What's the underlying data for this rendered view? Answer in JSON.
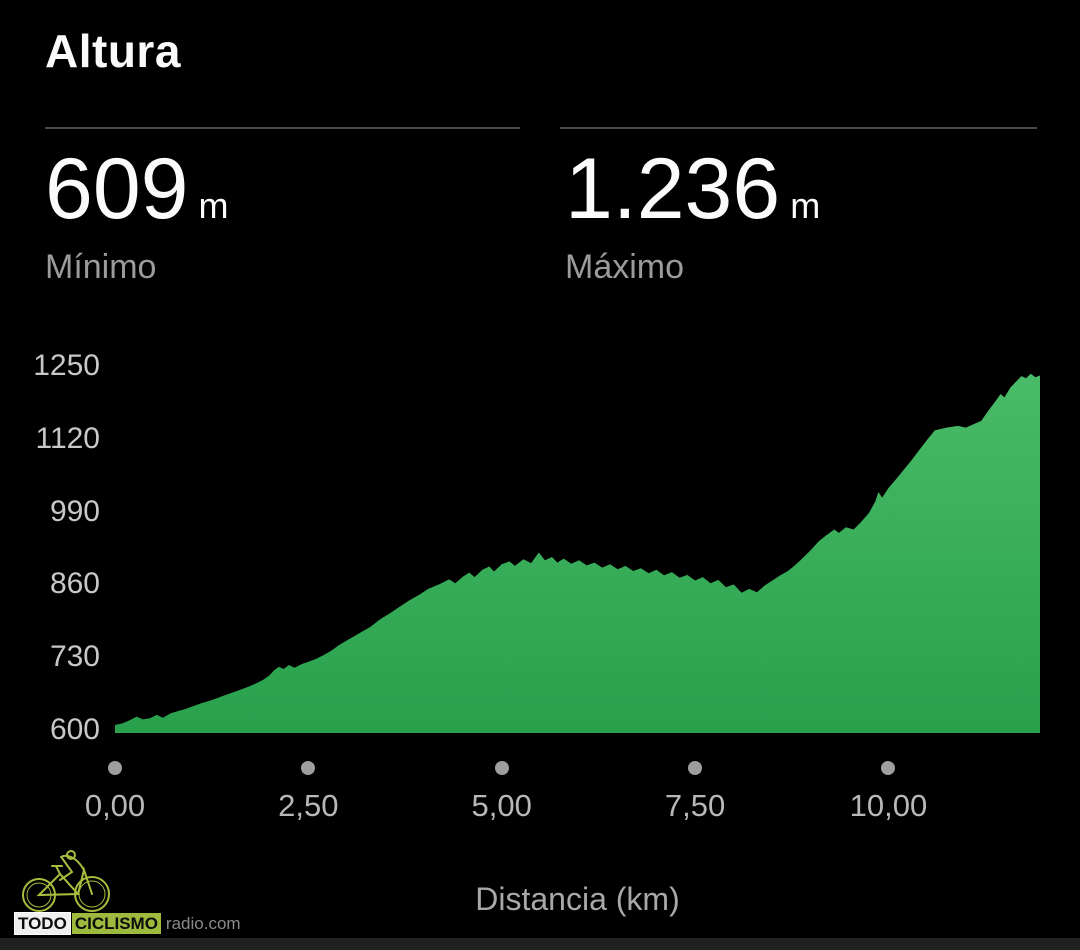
{
  "title": "Altura",
  "stats": {
    "min": {
      "value": "609",
      "unit": "m",
      "label": "Mínimo"
    },
    "max": {
      "value": "1.236",
      "unit": "m",
      "label": "Máximo"
    }
  },
  "chart_data": {
    "type": "area",
    "title": "Altura",
    "xlabel": "Distancia (km)",
    "ylabel": "",
    "xlim": [
      0,
      11.96
    ],
    "ylim": [
      600,
      1250
    ],
    "grid": false,
    "legend": "none",
    "x_ticks": [
      {
        "label": "0,00",
        "value": 0
      },
      {
        "label": "2,50",
        "value": 2.5
      },
      {
        "label": "5,00",
        "value": 5
      },
      {
        "label": "7,50",
        "value": 7.5
      },
      {
        "label": "10,00",
        "value": 10
      }
    ],
    "y_ticks": [
      {
        "label": "600",
        "value": 600
      },
      {
        "label": "730",
        "value": 730
      },
      {
        "label": "860",
        "value": 860
      },
      {
        "label": "990",
        "value": 990
      },
      {
        "label": "1120",
        "value": 1120
      },
      {
        "label": "1250",
        "value": 1250
      }
    ],
    "min_elevation_m": 609,
    "max_elevation_m": 1236,
    "points": [
      [
        0,
        609
      ],
      [
        0.1,
        612
      ],
      [
        0.2,
        618
      ],
      [
        0.28,
        624
      ],
      [
        0.36,
        619
      ],
      [
        0.45,
        621
      ],
      [
        0.54,
        627
      ],
      [
        0.62,
        622
      ],
      [
        0.72,
        630
      ],
      [
        0.82,
        634
      ],
      [
        0.92,
        638
      ],
      [
        1.02,
        643
      ],
      [
        1.12,
        648
      ],
      [
        1.22,
        652
      ],
      [
        1.32,
        657
      ],
      [
        1.42,
        662
      ],
      [
        1.52,
        667
      ],
      [
        1.62,
        672
      ],
      [
        1.72,
        677
      ],
      [
        1.82,
        683
      ],
      [
        1.92,
        690
      ],
      [
        2.0,
        698
      ],
      [
        2.06,
        707
      ],
      [
        2.12,
        713
      ],
      [
        2.18,
        709
      ],
      [
        2.25,
        716
      ],
      [
        2.32,
        711
      ],
      [
        2.42,
        718
      ],
      [
        2.5,
        722
      ],
      [
        2.6,
        727
      ],
      [
        2.7,
        734
      ],
      [
        2.8,
        742
      ],
      [
        2.9,
        752
      ],
      [
        3.0,
        760
      ],
      [
        3.1,
        768
      ],
      [
        3.2,
        776
      ],
      [
        3.3,
        784
      ],
      [
        3.42,
        797
      ],
      [
        3.55,
        808
      ],
      [
        3.68,
        820
      ],
      [
        3.8,
        831
      ],
      [
        3.94,
        842
      ],
      [
        4.05,
        852
      ],
      [
        4.19,
        860
      ],
      [
        4.32,
        869
      ],
      [
        4.4,
        862
      ],
      [
        4.5,
        874
      ],
      [
        4.58,
        881
      ],
      [
        4.65,
        873
      ],
      [
        4.75,
        886
      ],
      [
        4.84,
        892
      ],
      [
        4.9,
        883
      ],
      [
        5.0,
        896
      ],
      [
        5.1,
        901
      ],
      [
        5.17,
        893
      ],
      [
        5.28,
        905
      ],
      [
        5.38,
        898
      ],
      [
        5.48,
        917
      ],
      [
        5.56,
        903
      ],
      [
        5.65,
        909
      ],
      [
        5.72,
        899
      ],
      [
        5.8,
        906
      ],
      [
        5.9,
        897
      ],
      [
        6.0,
        903
      ],
      [
        6.1,
        894
      ],
      [
        6.2,
        899
      ],
      [
        6.3,
        890
      ],
      [
        6.4,
        896
      ],
      [
        6.5,
        887
      ],
      [
        6.6,
        893
      ],
      [
        6.7,
        884
      ],
      [
        6.8,
        889
      ],
      [
        6.9,
        880
      ],
      [
        7.0,
        886
      ],
      [
        7.1,
        876
      ],
      [
        7.2,
        882
      ],
      [
        7.3,
        872
      ],
      [
        7.4,
        877
      ],
      [
        7.5,
        867
      ],
      [
        7.6,
        873
      ],
      [
        7.7,
        862
      ],
      [
        7.8,
        868
      ],
      [
        7.9,
        855
      ],
      [
        8.0,
        860
      ],
      [
        8.1,
        845
      ],
      [
        8.2,
        852
      ],
      [
        8.3,
        846
      ],
      [
        8.4,
        858
      ],
      [
        8.5,
        867
      ],
      [
        8.6,
        876
      ],
      [
        8.7,
        884
      ],
      [
        8.8,
        895
      ],
      [
        8.9,
        908
      ],
      [
        9.0,
        922
      ],
      [
        9.1,
        937
      ],
      [
        9.2,
        948
      ],
      [
        9.3,
        958
      ],
      [
        9.36,
        952
      ],
      [
        9.45,
        962
      ],
      [
        9.55,
        958
      ],
      [
        9.65,
        972
      ],
      [
        9.75,
        988
      ],
      [
        9.83,
        1008
      ],
      [
        9.87,
        1025
      ],
      [
        9.92,
        1015
      ],
      [
        10.0,
        1032
      ],
      [
        10.1,
        1048
      ],
      [
        10.2,
        1065
      ],
      [
        10.3,
        1082
      ],
      [
        10.4,
        1100
      ],
      [
        10.5,
        1118
      ],
      [
        10.6,
        1135
      ],
      [
        10.75,
        1140
      ],
      [
        10.9,
        1143
      ],
      [
        11.0,
        1140
      ],
      [
        11.1,
        1146
      ],
      [
        11.2,
        1152
      ],
      [
        11.3,
        1172
      ],
      [
        11.38,
        1186
      ],
      [
        11.45,
        1200
      ],
      [
        11.5,
        1194
      ],
      [
        11.58,
        1212
      ],
      [
        11.65,
        1222
      ],
      [
        11.72,
        1232
      ],
      [
        11.78,
        1228
      ],
      [
        11.84,
        1236
      ],
      [
        11.9,
        1230
      ],
      [
        11.96,
        1233
      ]
    ],
    "fill_top_color": "#4abb68",
    "fill_bottom_color": "#28a04c",
    "background": "#000000"
  },
  "watermark": {
    "brand_todo": "TODO",
    "brand_ciclismo": "CICLISMO",
    "brand_radio": "radio.com",
    "logo_color": "#a9bc3e"
  },
  "colors": {
    "background": "#000000",
    "text_primary": "#fafafa",
    "text_secondary": "#9b9b9b",
    "axis_text": "#c8c8c8",
    "divider": "#4a4a4a",
    "tick_dot": "#9e9e9e",
    "bottom_bar": "#212121"
  }
}
